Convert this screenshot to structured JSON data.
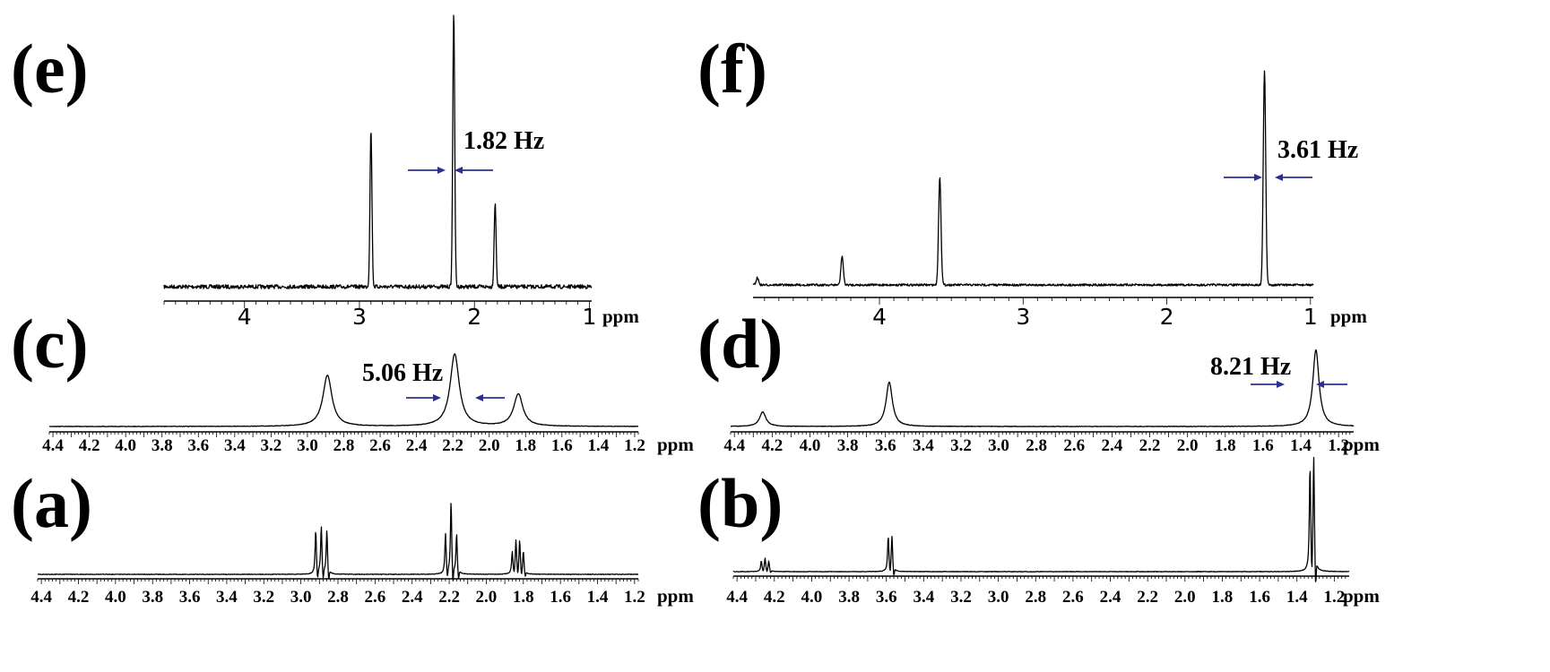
{
  "chart_data": [
    {
      "id": "e",
      "type": "line",
      "panel_label": "(e)",
      "xunit": "ppm",
      "xlim": [
        4.7,
        0.98
      ],
      "tick_labels": [
        "4",
        "3",
        "2",
        "1"
      ],
      "tick_values": [
        4,
        3,
        2,
        1
      ],
      "peaks": [
        {
          "x": 2.9,
          "height": 1.0
        },
        {
          "x": 2.18,
          "height": 1.75
        },
        {
          "x": 1.82,
          "height": 0.53
        }
      ],
      "annotation": "1.82 Hz"
    },
    {
      "id": "f",
      "type": "line",
      "panel_label": "(f)",
      "xunit": "ppm",
      "xlim": [
        4.88,
        0.98
      ],
      "tick_labels": [
        "4",
        "3",
        "2",
        "1"
      ],
      "tick_values": [
        4,
        3,
        2,
        1
      ],
      "peaks": [
        {
          "x": 4.85,
          "height": 0.04
        },
        {
          "x": 4.26,
          "height": 0.16
        },
        {
          "x": 3.58,
          "height": 0.6
        },
        {
          "x": 1.32,
          "height": 1.2
        }
      ],
      "annotation": "3.61 Hz"
    },
    {
      "id": "c",
      "type": "line",
      "panel_label": "(c)",
      "xunit": "ppm",
      "xlim": [
        4.42,
        1.18
      ],
      "tick_labels": [
        "4.4",
        "4.2",
        "4.0",
        "3.8",
        "3.6",
        "3.4",
        "3.2",
        "3.0",
        "2.8",
        "2.6",
        "2.4",
        "2.2",
        "2.0",
        "1.8",
        "1.6",
        "1.4",
        "1.2"
      ],
      "tick_values": [
        4.4,
        4.2,
        4.0,
        3.8,
        3.6,
        3.4,
        3.2,
        3.0,
        2.8,
        2.6,
        2.4,
        2.2,
        2.0,
        1.8,
        1.6,
        1.4,
        1.2
      ],
      "peaks": [
        {
          "x": 2.89,
          "height": 0.6
        },
        {
          "x": 2.19,
          "height": 0.85
        },
        {
          "x": 1.84,
          "height": 0.38
        }
      ],
      "annotation": "5.06 Hz"
    },
    {
      "id": "d",
      "type": "line",
      "panel_label": "(d)",
      "xunit": "ppm",
      "xlim": [
        4.42,
        1.12
      ],
      "tick_labels": [
        "4.4",
        "4.2",
        "4.0",
        "3.8",
        "3.6",
        "3.4",
        "3.2",
        "3.0",
        "2.8",
        "2.6",
        "2.4",
        "2.2",
        "2.0",
        "1.8",
        "1.6",
        "1.4",
        "1.2"
      ],
      "tick_values": [
        4.4,
        4.2,
        4.0,
        3.8,
        3.6,
        3.4,
        3.2,
        3.0,
        2.8,
        2.6,
        2.4,
        2.2,
        2.0,
        1.8,
        1.6,
        1.4,
        1.2
      ],
      "peaks": [
        {
          "x": 4.25,
          "height": 0.18
        },
        {
          "x": 3.58,
          "height": 0.55
        },
        {
          "x": 1.32,
          "height": 0.95
        }
      ],
      "annotation": "8.21 Hz"
    },
    {
      "id": "a",
      "type": "line",
      "panel_label": "(a)",
      "xunit": "ppm",
      "xlim": [
        4.42,
        1.18
      ],
      "tick_labels": [
        "4.4",
        "4.2",
        "4.0",
        "3.8",
        "3.6",
        "3.4",
        "3.2",
        "3.0",
        "2.8",
        "2.6",
        "2.4",
        "2.2",
        "2.0",
        "1.8",
        "1.6",
        "1.4",
        "1.2"
      ],
      "tick_values": [
        4.4,
        4.2,
        4.0,
        3.8,
        3.6,
        3.4,
        3.2,
        3.0,
        2.8,
        2.6,
        2.4,
        2.2,
        2.0,
        1.8,
        1.6,
        1.4,
        1.2
      ],
      "peaks": [
        {
          "x": 2.92,
          "height": 0.6
        },
        {
          "x": 2.89,
          "height": 0.65
        },
        {
          "x": 2.86,
          "height": 0.6
        },
        {
          "x": 2.22,
          "height": 0.55
        },
        {
          "x": 2.19,
          "height": 1.0
        },
        {
          "x": 2.16,
          "height": 0.55
        },
        {
          "x": 1.86,
          "height": 0.3
        },
        {
          "x": 1.84,
          "height": 0.45
        },
        {
          "x": 1.82,
          "height": 0.45
        },
        {
          "x": 1.8,
          "height": 0.3
        }
      ]
    },
    {
      "id": "b",
      "type": "line",
      "panel_label": "(b)",
      "xunit": "ppm",
      "xlim": [
        4.42,
        1.12
      ],
      "tick_labels": [
        "4.4",
        "4.2",
        "4.0",
        "3.8",
        "3.6",
        "3.4",
        "3.2",
        "3.0",
        "2.8",
        "2.6",
        "2.4",
        "2.2",
        "2.0",
        "1.8",
        "1.6",
        "1.4",
        "1.2"
      ],
      "tick_values": [
        4.4,
        4.2,
        4.0,
        3.8,
        3.6,
        3.4,
        3.2,
        3.0,
        2.8,
        2.6,
        2.4,
        2.2,
        2.0,
        1.8,
        1.6,
        1.4,
        1.2
      ],
      "peaks": [
        {
          "x": 4.27,
          "height": 0.12
        },
        {
          "x": 4.25,
          "height": 0.15
        },
        {
          "x": 4.23,
          "height": 0.12
        },
        {
          "x": 3.59,
          "height": 0.4
        },
        {
          "x": 3.57,
          "height": 0.4
        },
        {
          "x": 1.33,
          "height": 1.2
        },
        {
          "x": 1.31,
          "height": 1.3
        }
      ]
    }
  ]
}
